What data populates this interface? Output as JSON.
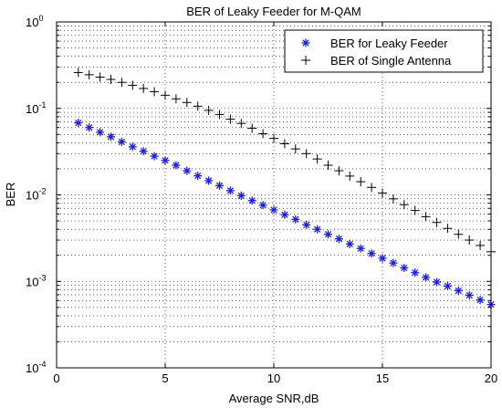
{
  "chart_data": {
    "type": "scatter",
    "title": "BER of Leaky Feeder for M-QAM",
    "xlabel": "Average SNR,dB",
    "ylabel": "BER",
    "xlim": [
      0,
      20
    ],
    "ylim": [
      0.0001,
      1
    ],
    "yscale": "log",
    "grid": "major and minor, dotted",
    "legend_position": "top-right",
    "x_ticks": [
      "0",
      "5",
      "10",
      "15",
      "20"
    ],
    "x_tick_values": [
      0,
      5,
      10,
      15,
      20
    ],
    "y_ticks": [
      {
        "base": "10",
        "exp": "0",
        "value": 1
      },
      {
        "base": "10",
        "exp": "-1",
        "value": 0.1
      },
      {
        "base": "10",
        "exp": "-2",
        "value": 0.01
      },
      {
        "base": "10",
        "exp": "-3",
        "value": 0.001
      },
      {
        "base": "10",
        "exp": "-4",
        "value": 0.0001
      }
    ],
    "x": [
      1,
      1.5,
      2,
      2.5,
      3,
      3.5,
      4,
      4.5,
      5,
      5.5,
      6,
      6.5,
      7,
      7.5,
      8,
      8.5,
      9,
      9.5,
      10,
      10.5,
      11,
      11.5,
      12,
      12.5,
      13,
      13.5,
      14,
      14.5,
      15,
      15.5,
      16,
      16.5,
      17,
      17.5,
      18,
      18.5,
      19,
      19.5,
      20
    ],
    "series": [
      {
        "name": "BER for Leaky Feeder",
        "marker": "*",
        "color": "#1f1fd6",
        "values": [
          0.068,
          0.06,
          0.053,
          0.047,
          0.041,
          0.036,
          0.032,
          0.028,
          0.025,
          0.022,
          0.019,
          0.0166,
          0.0146,
          0.0128,
          0.0112,
          0.0098,
          0.0086,
          0.0076,
          0.0067,
          0.0059,
          0.0052,
          0.0045,
          0.004,
          0.0035,
          0.0031,
          0.0027,
          0.0024,
          0.0021,
          0.00185,
          0.00163,
          0.00143,
          0.00126,
          0.00111,
          0.00098,
          0.00088,
          0.00078,
          0.00069,
          0.00061,
          0.00054
        ]
      },
      {
        "name": "BER of Single Antenna",
        "marker": "+",
        "color": "#000000",
        "values": [
          0.26,
          0.245,
          0.23,
          0.216,
          0.2,
          0.185,
          0.17,
          0.156,
          0.142,
          0.129,
          0.117,
          0.106,
          0.095,
          0.085,
          0.075,
          0.067,
          0.059,
          0.051,
          0.045,
          0.039,
          0.034,
          0.03,
          0.026,
          0.022,
          0.019,
          0.0165,
          0.0142,
          0.0122,
          0.0105,
          0.009,
          0.0077,
          0.0066,
          0.0056,
          0.0048,
          0.0041,
          0.0035,
          0.003,
          0.0026,
          0.0022
        ]
      }
    ]
  }
}
